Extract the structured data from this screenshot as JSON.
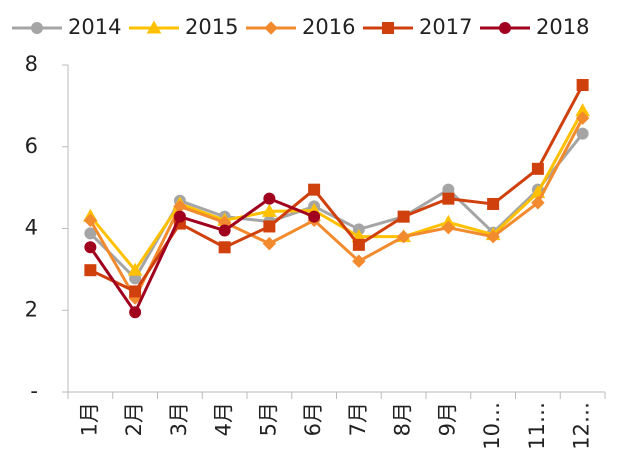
{
  "chart_data": {
    "type": "line",
    "categories": [
      "1月",
      "2月",
      "3月",
      "4月",
      "5月",
      "6月",
      "7月",
      "8月",
      "9月",
      "10…",
      "11…",
      "12…"
    ],
    "series": [
      {
        "name": "2014",
        "color": "#a5a5a5",
        "marker": "circle",
        "values": [
          3.88,
          2.78,
          4.68,
          4.29,
          4.17,
          4.54,
          3.98,
          4.29,
          4.95,
          3.9,
          4.95,
          6.32
        ]
      },
      {
        "name": "2015",
        "color": "#ffc000",
        "marker": "triangle",
        "values": [
          4.3,
          2.98,
          4.6,
          4.2,
          4.42,
          4.44,
          3.8,
          3.8,
          4.15,
          3.85,
          4.88,
          6.88
        ]
      },
      {
        "name": "2016",
        "color": "#f28a2e",
        "marker": "diamond",
        "values": [
          4.2,
          2.3,
          4.54,
          4.15,
          3.63,
          4.2,
          3.2,
          3.8,
          4.02,
          3.8,
          4.63,
          6.7
        ]
      },
      {
        "name": "2017",
        "color": "#d0400c",
        "marker": "square",
        "values": [
          2.98,
          2.46,
          4.12,
          3.54,
          4.05,
          4.95,
          3.6,
          4.29,
          4.73,
          4.6,
          5.46,
          7.51
        ]
      },
      {
        "name": "2018",
        "color": "#a0001e",
        "marker": "circle",
        "values": [
          3.54,
          1.95,
          4.29,
          3.95,
          4.73,
          4.29,
          null,
          null,
          null,
          null,
          null,
          null
        ]
      }
    ],
    "ylim": [
      0,
      8
    ],
    "yticks": [
      {
        "value": 0,
        "label": "-"
      },
      2,
      4,
      6,
      8
    ],
    "grid": false,
    "legend": "top"
  }
}
